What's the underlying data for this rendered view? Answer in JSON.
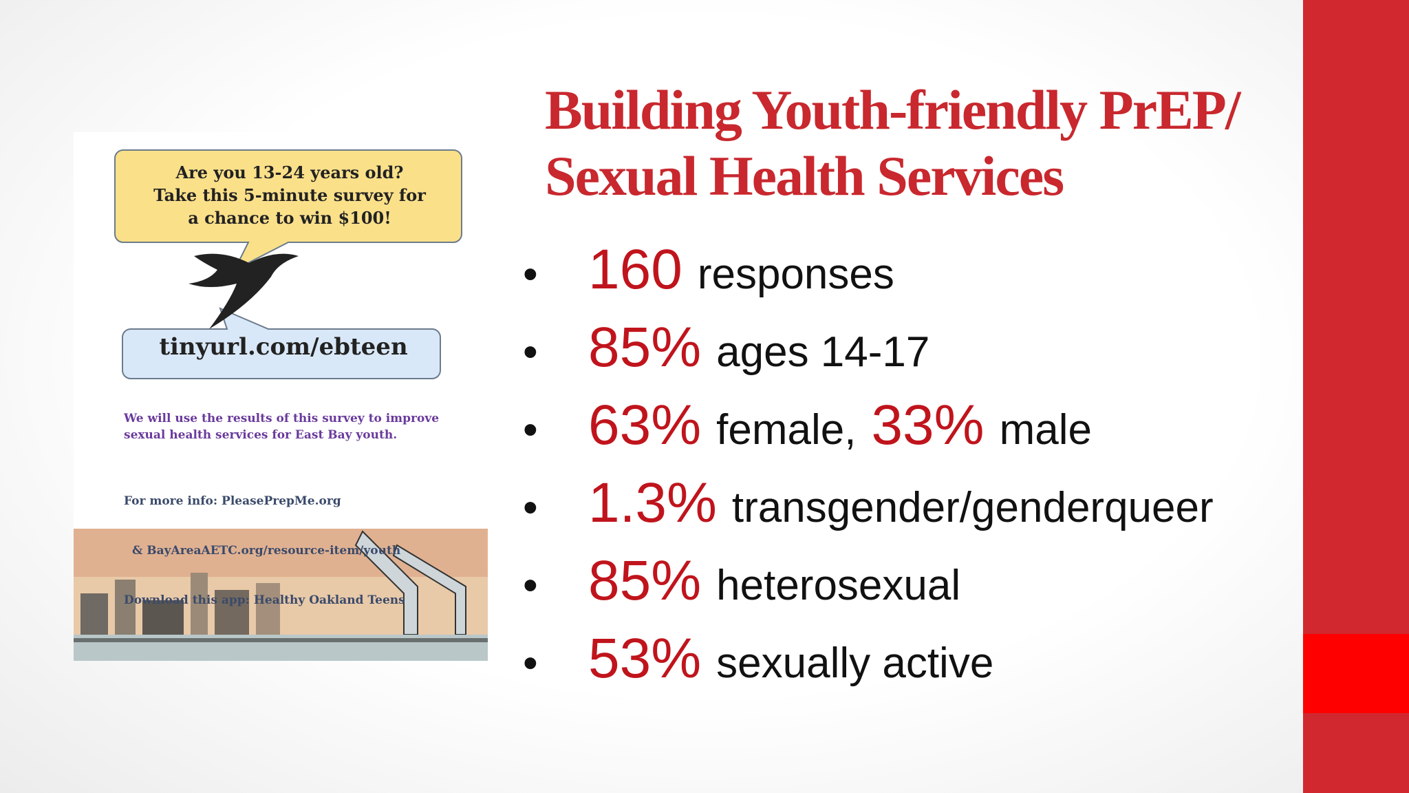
{
  "title": {
    "lines": [
      "Building Youth-friendly PrEP/",
      "Sexual Health Services"
    ]
  },
  "bullets": [
    [
      {
        "em": "160"
      },
      {
        "text": "responses"
      }
    ],
    [
      {
        "em": "85%"
      },
      {
        "text": "ages 14-17"
      }
    ],
    [
      {
        "em": "63%"
      },
      {
        "text": "female,"
      },
      {
        "em": "33%"
      },
      {
        "text": "male"
      }
    ],
    [
      {
        "em": "1.3%"
      },
      {
        "text": "transgender/genderqueer"
      }
    ],
    [
      {
        "em": "85%"
      },
      {
        "text": "heterosexual"
      }
    ],
    [
      {
        "em": "53%"
      },
      {
        "text": "sexually active"
      }
    ]
  ],
  "flyer": {
    "bubble": [
      "Are you 13-24 years old?",
      "Take this 5-minute survey for",
      "a chance to win $100!"
    ],
    "url": "tinyurl.com/ebteen",
    "purpose": [
      "We will use the results of this survey to improve",
      "sexual health services for East Bay youth."
    ],
    "info": [
      "For more info: PleasePrepMe.org",
      "& BayAreaAETC.org/resource-item/youth",
      "Download this app: Healthy Oakland Teens"
    ]
  }
}
